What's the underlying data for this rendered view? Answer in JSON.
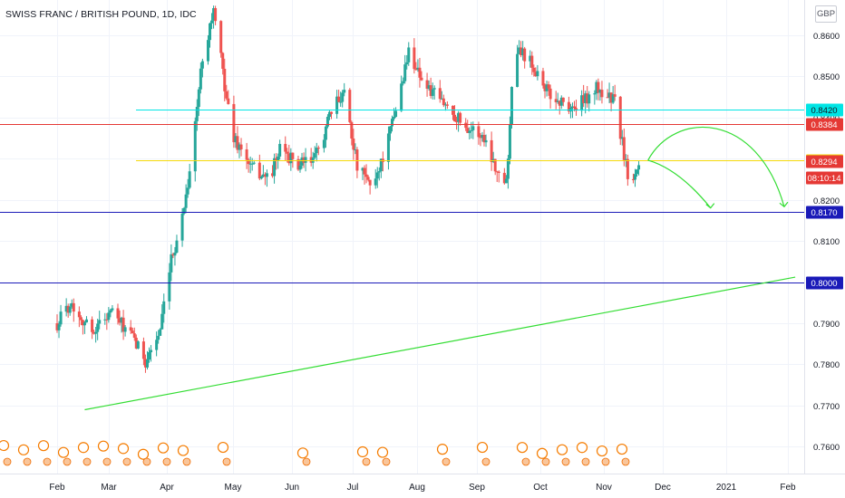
{
  "chart_data": {
    "type": "candlestick",
    "title": "SWISS FRANC / BRITISH POUND, 1D, IDC",
    "currency_button": "GBP",
    "y_axis": {
      "range": [
        0.7535,
        0.8685
      ],
      "ticks": [
        "0.8600",
        "0.8500",
        "0.8400",
        "0.8300",
        "0.8200",
        "0.8100",
        "0.8000",
        "0.7900",
        "0.7800",
        "0.7700",
        "0.7600"
      ]
    },
    "x_axis": {
      "labels": [
        "Feb",
        "Mar",
        "Apr",
        "May",
        "Jun",
        "Jul",
        "Aug",
        "Sep",
        "Oct",
        "Nov",
        "Dec",
        "2021",
        "Feb"
      ]
    },
    "grid": true,
    "price_levels": [
      {
        "value": 0.842,
        "label": "0.8420",
        "color": "#00e5e5"
      },
      {
        "value": 0.8384,
        "label": "0.8384",
        "color": "#e53935"
      },
      {
        "value": 0.8296,
        "label": "0.8296",
        "color": "#f5d90a"
      },
      {
        "value": 0.817,
        "label": "0.8170",
        "color": "#1a1ab8"
      },
      {
        "value": 0.8,
        "label": "0.8000",
        "color": "#1a1ab8"
      }
    ],
    "last_price_tags": [
      {
        "value": 0.8294,
        "label": "0.8294",
        "color": "#e53935"
      },
      {
        "value": 0.8266,
        "label": "08:10:14",
        "color": "#e53935"
      }
    ],
    "trendline": {
      "color": "#33dd33",
      "from": [
        "2020-01-16",
        0.769
      ],
      "to": [
        "2021-02-05",
        0.8012
      ]
    },
    "projection_arcs": [
      {
        "color": "#33dd33",
        "from": [
          "2020-11-17",
          0.8296
        ],
        "to": [
          "2020-12-21",
          0.818
        ]
      },
      {
        "color": "#33dd33",
        "from": [
          "2020-11-17",
          0.8296
        ],
        "to": [
          "2021-01-30",
          0.8183
        ]
      }
    ],
    "ohlc_series": [
      {
        "month": "2020-01",
        "open": 0.79,
        "high": 0.7975,
        "low": 0.783,
        "close": 0.788
      },
      {
        "month": "2020-02",
        "open": 0.788,
        "high": 0.791,
        "low": 0.78,
        "close": 0.788
      },
      {
        "month": "2020-03",
        "open": 0.788,
        "high": 0.8685,
        "low": 0.787,
        "close": 0.855
      },
      {
        "month": "2020-04",
        "open": 0.855,
        "high": 0.856,
        "low": 0.825,
        "close": 0.827
      },
      {
        "month": "2020-05",
        "open": 0.827,
        "high": 0.836,
        "low": 0.822,
        "close": 0.832
      },
      {
        "month": "2020-06",
        "open": 0.832,
        "high": 0.852,
        "low": 0.817,
        "close": 0.832
      },
      {
        "month": "2020-07",
        "open": 0.832,
        "high": 0.859,
        "low": 0.83,
        "close": 0.841
      },
      {
        "month": "2020-08",
        "open": 0.841,
        "high": 0.844,
        "low": 0.82,
        "close": 0.832
      },
      {
        "month": "2020-09",
        "open": 0.832,
        "high": 0.861,
        "low": 0.827,
        "close": 0.846
      },
      {
        "month": "2020-10",
        "open": 0.846,
        "high": 0.852,
        "low": 0.84,
        "close": 0.845
      },
      {
        "month": "2020-11",
        "open": 0.845,
        "high": 0.848,
        "low": 0.819,
        "close": 0.8294
      }
    ]
  }
}
